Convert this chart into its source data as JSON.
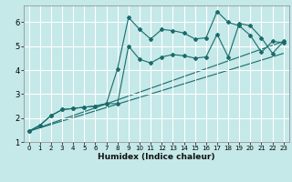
{
  "title": "",
  "xlabel": "Humidex (Indice chaleur)",
  "ylabel": "",
  "background_color": "#c5e8e8",
  "grid_color": "#ffffff",
  "line_color": "#1a6b6b",
  "xlim": [
    -0.5,
    23.5
  ],
  "ylim": [
    1.0,
    6.7
  ],
  "xticks": [
    0,
    1,
    2,
    3,
    4,
    5,
    6,
    7,
    8,
    9,
    10,
    11,
    12,
    13,
    14,
    15,
    16,
    17,
    18,
    19,
    20,
    21,
    22,
    23
  ],
  "yticks": [
    1,
    2,
    3,
    4,
    5,
    6
  ],
  "series1_x": [
    0,
    1,
    2,
    3,
    4,
    5,
    6,
    7,
    8,
    9,
    10,
    11,
    12,
    13,
    14,
    15,
    16,
    17,
    18,
    19,
    20,
    21,
    22,
    23
  ],
  "series1_y": [
    1.45,
    1.7,
    2.1,
    2.35,
    2.4,
    2.45,
    2.5,
    2.6,
    4.05,
    6.2,
    5.7,
    5.3,
    5.7,
    5.65,
    5.55,
    5.3,
    5.35,
    6.45,
    6.0,
    5.85,
    5.45,
    4.75,
    5.2,
    5.15
  ],
  "series2_x": [
    0,
    1,
    2,
    3,
    4,
    5,
    6,
    7,
    8,
    9,
    10,
    11,
    12,
    13,
    14,
    15,
    16,
    17,
    18,
    19,
    20,
    21,
    22,
    23
  ],
  "series2_y": [
    1.45,
    1.7,
    2.1,
    2.35,
    2.4,
    2.45,
    2.5,
    2.6,
    2.6,
    5.0,
    4.45,
    4.3,
    4.55,
    4.65,
    4.6,
    4.5,
    4.55,
    5.5,
    4.55,
    5.95,
    5.85,
    5.35,
    4.7,
    5.2
  ],
  "line1_x": [
    0,
    23
  ],
  "line1_y": [
    1.45,
    5.2
  ],
  "line2_x": [
    0,
    23
  ],
  "line2_y": [
    1.45,
    4.7
  ]
}
